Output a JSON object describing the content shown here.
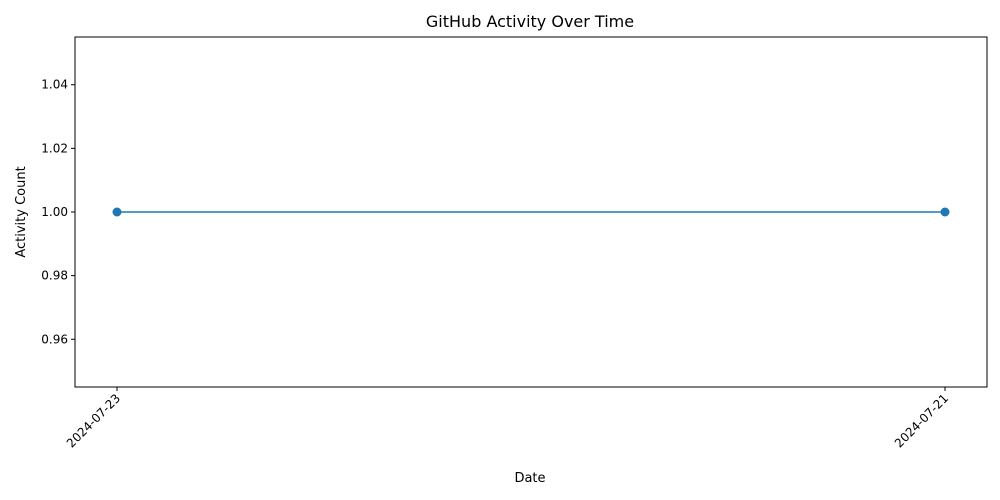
{
  "chart_data": {
    "type": "line",
    "title": "GitHub Activity Over Time",
    "xlabel": "Date",
    "ylabel": "Activity Count",
    "x": [
      "2024-07-23",
      "2024-07-21"
    ],
    "series": [
      {
        "values": [
          1,
          1
        ],
        "color": "#1f77b4"
      }
    ],
    "ylim": [
      0.945,
      1.055
    ],
    "yticks": [
      "0.96",
      "0.98",
      "1.00",
      "1.02",
      "1.04"
    ],
    "grid": false,
    "marker": "circle"
  }
}
